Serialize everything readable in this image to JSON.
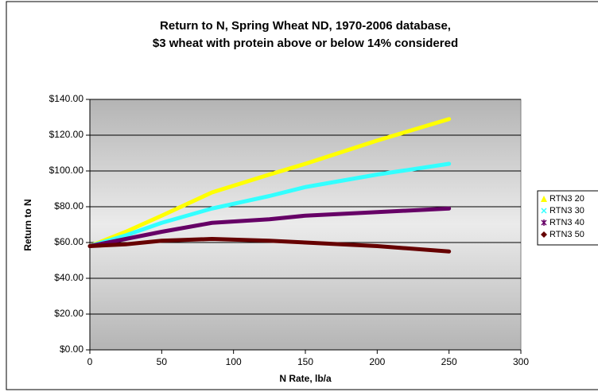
{
  "chart_data": {
    "type": "line",
    "title": [
      "Return to N, Spring Wheat ND, 1970-2006 database,",
      "$3 wheat with protein above or below 14% considered"
    ],
    "x_label": "N Rate, lb/a",
    "y_label": "Return to N",
    "x": [
      0,
      25,
      50,
      85,
      125,
      150,
      200,
      250
    ],
    "series": [
      {
        "name": "RTN3 20",
        "color": "#ffff00",
        "marker": "triangle",
        "values": [
          58,
          66,
          75,
          88,
          98,
          104,
          117,
          129
        ]
      },
      {
        "name": "RTN3 30",
        "color": "#33ffff",
        "marker": "x",
        "values": [
          58,
          64,
          71,
          79,
          86,
          91,
          98,
          104
        ]
      },
      {
        "name": "RTN3 40",
        "color": "#660066",
        "marker": "star",
        "values": [
          58,
          62,
          66,
          71,
          73,
          75,
          77,
          79
        ]
      },
      {
        "name": "RTN3 50",
        "color": "#660000",
        "marker": "diamond",
        "values": [
          58,
          59,
          61,
          62,
          61,
          60,
          58,
          55
        ]
      }
    ],
    "xlim": [
      0,
      300
    ],
    "xticks": [
      0,
      50,
      100,
      150,
      200,
      250,
      300
    ],
    "ylim": [
      0,
      140
    ],
    "yticks": [
      {
        "value": 0,
        "label": "$0.00"
      },
      {
        "value": 20,
        "label": "$20.00"
      },
      {
        "value": 40,
        "label": "$40.00"
      },
      {
        "value": 60,
        "label": "$60.00"
      },
      {
        "value": 80,
        "label": "$80.00"
      },
      {
        "value": 100,
        "label": "$100.00"
      },
      {
        "value": 120,
        "label": "$120.00"
      },
      {
        "value": 140,
        "label": "$140.00"
      }
    ],
    "grid": true,
    "legend": "right"
  }
}
